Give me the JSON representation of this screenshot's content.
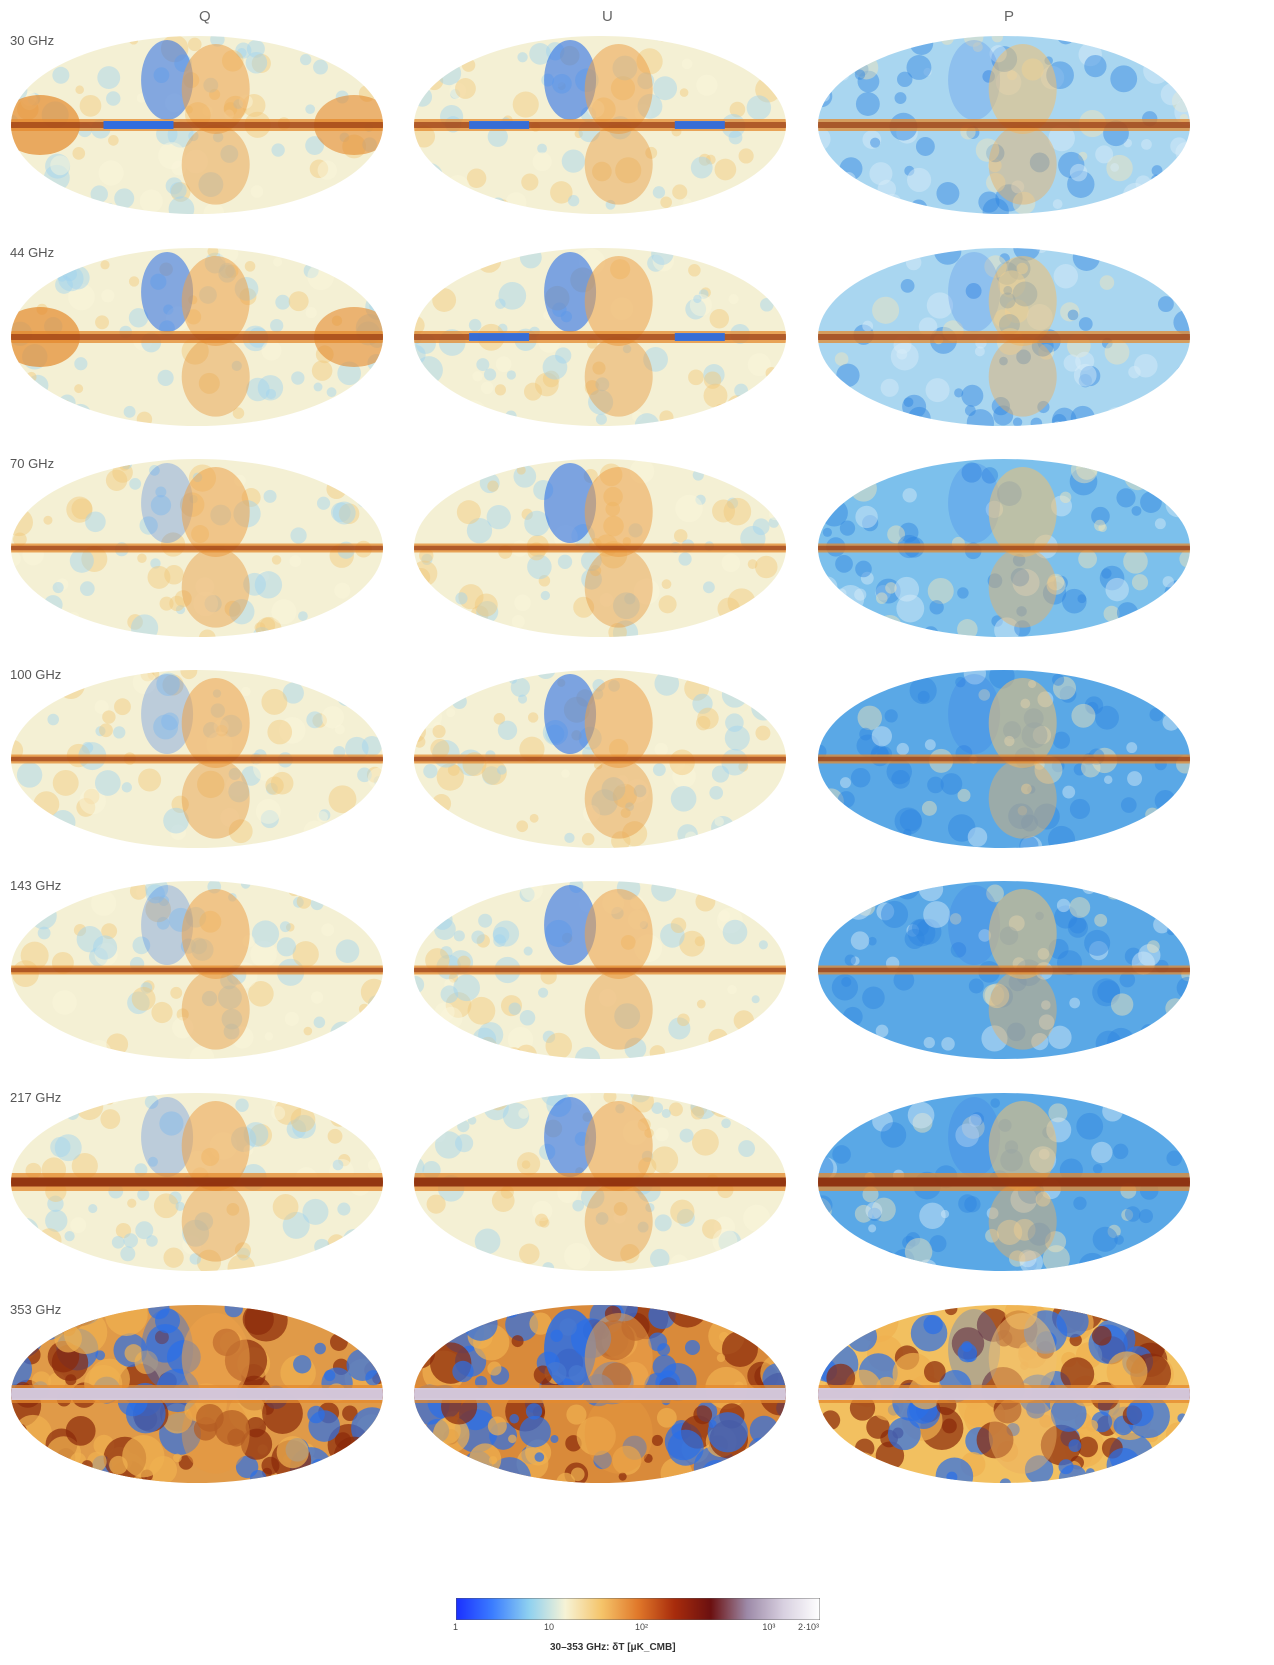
{
  "columns": [
    "Q",
    "U",
    "P"
  ],
  "rows": [
    "30 GHz",
    "44 GHz",
    "70 GHz",
    "100 GHz",
    "143 GHz",
    "217 GHz",
    "353 GHz"
  ],
  "colorbar": {
    "ticks": [
      "1",
      "10",
      "10²",
      "10³",
      "2·10³"
    ],
    "tick_fractions": [
      0,
      0.25,
      0.5,
      0.85,
      1
    ],
    "title": "30–353 GHz: δT [μK_CMB]",
    "colors": [
      "#1a2fff",
      "#3b7dff",
      "#8ed0f0",
      "#f6f3d6",
      "#f5c46a",
      "#e0782a",
      "#a82c0c",
      "#6b1010",
      "#9d8aa8",
      "#d8d0e0",
      "#ffffff"
    ]
  },
  "palette": {
    "background": "#f4f0d4",
    "blue_bg": "#7cc0ec",
    "orange": "#e48a2e",
    "dark": "#8a2a0a",
    "blue": "#2a6fe8",
    "lavender": "#d6cde4"
  }
}
